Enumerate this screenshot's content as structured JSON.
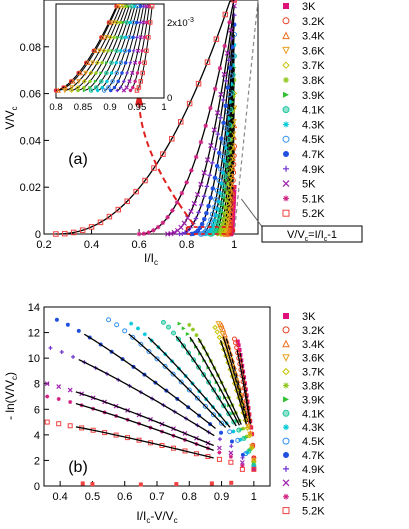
{
  "chart_data": [
    {
      "type": "scatter",
      "panel_label": "(a)",
      "xlabel": "I/I_c",
      "ylabel": "V/V_c",
      "xlim": [
        0.2,
        1.1
      ],
      "ylim": [
        0,
        0.1
      ],
      "x_ticks": [
        "0.2",
        "0.4",
        "0.6",
        "0.8",
        "1"
      ],
      "y_ticks": [
        "0",
        "0.02",
        "0.04",
        "0.06",
        "0.08"
      ],
      "annotation": "V/V_c=I/I_c-1",
      "series": [
        {
          "name": "3K",
          "color": "#e0107a",
          "marker": "square",
          "onset": 0.985
        },
        {
          "name": "3.2K",
          "color": "#e84020",
          "marker": "circle",
          "onset": 0.975
        },
        {
          "name": "3.4K",
          "color": "#f07020",
          "marker": "triangle",
          "onset": 0.965
        },
        {
          "name": "3.6K",
          "color": "#e8a020",
          "marker": "tri-down",
          "onset": 0.955
        },
        {
          "name": "3.7K",
          "color": "#c8c000",
          "marker": "diamond",
          "onset": 0.945
        },
        {
          "name": "3.8K",
          "color": "#90c820",
          "marker": "star",
          "onset": 0.93
        },
        {
          "name": "3.9K",
          "color": "#30c030",
          "marker": "tri-right",
          "onset": 0.915
        },
        {
          "name": "4.1K",
          "color": "#20c8a0",
          "marker": "hexagon",
          "onset": 0.9
        },
        {
          "name": "4.3K",
          "color": "#00c8d8",
          "marker": "star",
          "onset": 0.88
        },
        {
          "name": "4.5K",
          "color": "#3090f0",
          "marker": "circle",
          "onset": 0.86
        },
        {
          "name": "4.7K",
          "color": "#2050e0",
          "marker": "filled-circle",
          "onset": 0.82
        },
        {
          "name": "4.9K",
          "color": "#7030d0",
          "marker": "plus",
          "onset": 0.77
        },
        {
          "name": "5K",
          "color": "#a020b0",
          "marker": "x",
          "onset": 0.72
        },
        {
          "name": "5.1K",
          "color": "#d02080",
          "marker": "star",
          "onset": 0.6
        },
        {
          "name": "5.2K",
          "color": "#f04040",
          "marker": "square-open",
          "onset": 0.25
        }
      ],
      "inset": {
        "xlim": [
          0.8,
          1.0
        ],
        "ylim": [
          0,
          0.0025
        ],
        "x_ticks": [
          "0.8",
          "0.85",
          "0.9",
          "0.95",
          "1"
        ],
        "y_ticks": [
          "0",
          "2x10^-3"
        ]
      }
    },
    {
      "type": "scatter",
      "panel_label": "(b)",
      "xlabel": "I/I_c-V/V_c",
      "ylabel": "- ln(V/V_c)",
      "xlim": [
        0.35,
        1.05
      ],
      "ylim": [
        0,
        14
      ],
      "x_ticks": [
        "0.4",
        "0.5",
        "0.6",
        "0.7",
        "0.8",
        "0.9",
        "1"
      ],
      "y_ticks": [
        "0",
        "2",
        "4",
        "6",
        "8",
        "10",
        "12",
        "14"
      ],
      "series": [
        {
          "name": "3K",
          "start_x": 0.95,
          "start_y": 11.3,
          "end_y": 3.0
        },
        {
          "name": "3.2K",
          "start_x": 0.94,
          "start_y": 11.5,
          "end_y": 3.0
        },
        {
          "name": "3.4K",
          "start_x": 0.9,
          "start_y": 12.6,
          "end_y": 2.9
        },
        {
          "name": "3.6K",
          "start_x": 0.89,
          "start_y": 12.7,
          "end_y": 2.8
        },
        {
          "name": "3.7K",
          "start_x": 0.88,
          "start_y": 12.4,
          "end_y": 2.7
        },
        {
          "name": "3.8K",
          "start_x": 0.8,
          "start_y": 12.6,
          "end_y": 2.6
        },
        {
          "name": "3.9K",
          "start_x": 0.77,
          "start_y": 12.7,
          "end_y": 2.5
        },
        {
          "name": "4.1K",
          "start_x": 0.72,
          "start_y": 12.8,
          "end_y": 2.4
        },
        {
          "name": "4.3K",
          "start_x": 0.62,
          "start_y": 12.7,
          "end_y": 2.3
        },
        {
          "name": "4.5K",
          "start_x": 0.55,
          "start_y": 13.0,
          "end_y": 2.2
        },
        {
          "name": "4.7K",
          "start_x": 0.39,
          "start_y": 13.0,
          "end_y": 2.1
        },
        {
          "name": "4.9K",
          "start_x": 0.37,
          "start_y": 10.8,
          "end_y": 2.0
        },
        {
          "name": "5K",
          "start_x": 0.36,
          "start_y": 8.0,
          "end_y": 1.8
        },
        {
          "name": "5.1K",
          "start_x": 0.36,
          "start_y": 7.0,
          "end_y": 1.6
        },
        {
          "name": "5.2K",
          "start_x": 0.36,
          "start_y": 5.0,
          "end_y": 1.4
        }
      ],
      "sparse_points_5_2K": [
        [
          0.47,
          0.2
        ],
        [
          0.5,
          0.15
        ],
        [
          0.65,
          0.12
        ],
        [
          0.76,
          0.15
        ],
        [
          0.87,
          0.2
        ],
        [
          0.93,
          0.25
        ]
      ]
    }
  ]
}
